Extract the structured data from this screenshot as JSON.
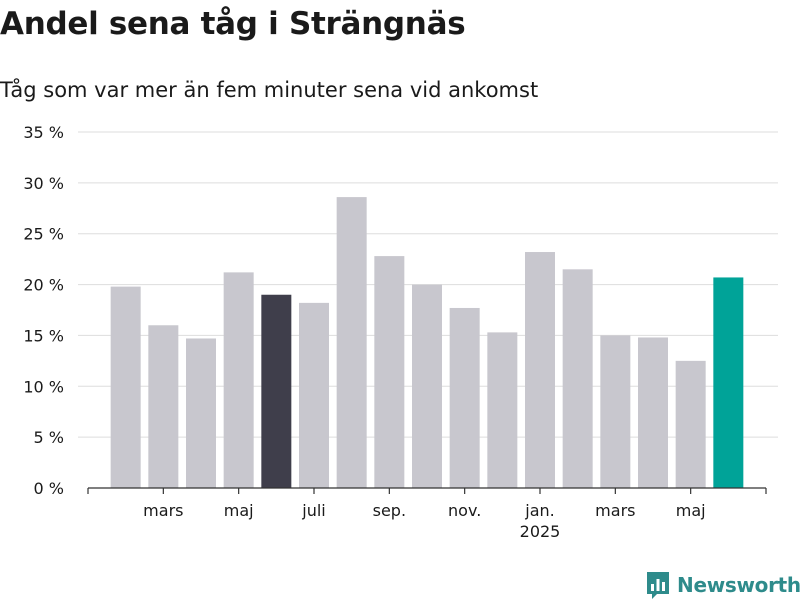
{
  "header": {
    "title": "Andel sena tåg i Strängnäs",
    "subtitle": "Tåg som var mer än fem minuter sena vid ankomst"
  },
  "brand": {
    "name": "Newsworthy",
    "icon": "bar-chart-speech-bubble-icon",
    "color": "#2e8b8b"
  },
  "colors": {
    "default_bar": "#c8c7ce",
    "previous_year_bar": "#3f3e4b",
    "latest_bar": "#00a398",
    "grid": "#dddddd",
    "text": "#1a1a1a"
  },
  "chart_data": {
    "type": "bar",
    "categories": [
      "2024-02",
      "2024-03",
      "2024-04",
      "2024-05",
      "2024-06",
      "2024-07",
      "2024-08",
      "2024-09",
      "2024-10",
      "2024-11",
      "2024-12",
      "2025-01",
      "2025-02",
      "2025-03",
      "2025-04",
      "2025-05",
      "2025-06"
    ],
    "values": [
      19.8,
      16.0,
      14.7,
      21.2,
      19.0,
      18.2,
      28.6,
      22.8,
      20.0,
      17.7,
      15.3,
      23.2,
      21.5,
      15.0,
      14.8,
      12.5,
      20.7
    ],
    "highlight": {
      "2024-06": "previous_year_bar",
      "2025-06": "latest_bar"
    },
    "ylim": [
      0,
      35
    ],
    "yticks": [
      0,
      5,
      10,
      15,
      20,
      25,
      30,
      35
    ],
    "ytick_labels": [
      "0 %",
      "5 %",
      "10 %",
      "15 %",
      "20 %",
      "25 %",
      "30 %",
      "35 %"
    ],
    "xtick_labels": [
      {
        "category": "2024-03",
        "label": "mars"
      },
      {
        "category": "2024-05",
        "label": "maj"
      },
      {
        "category": "2024-07",
        "label": "juli"
      },
      {
        "category": "2024-09",
        "label": "sep."
      },
      {
        "category": "2024-11",
        "label": "nov."
      },
      {
        "category": "2025-01",
        "label": "jan.",
        "sublabel": "2025"
      },
      {
        "category": "2025-03",
        "label": "mars"
      },
      {
        "category": "2025-05",
        "label": "maj"
      }
    ],
    "xlabel": "",
    "ylabel": "",
    "grid": true
  }
}
